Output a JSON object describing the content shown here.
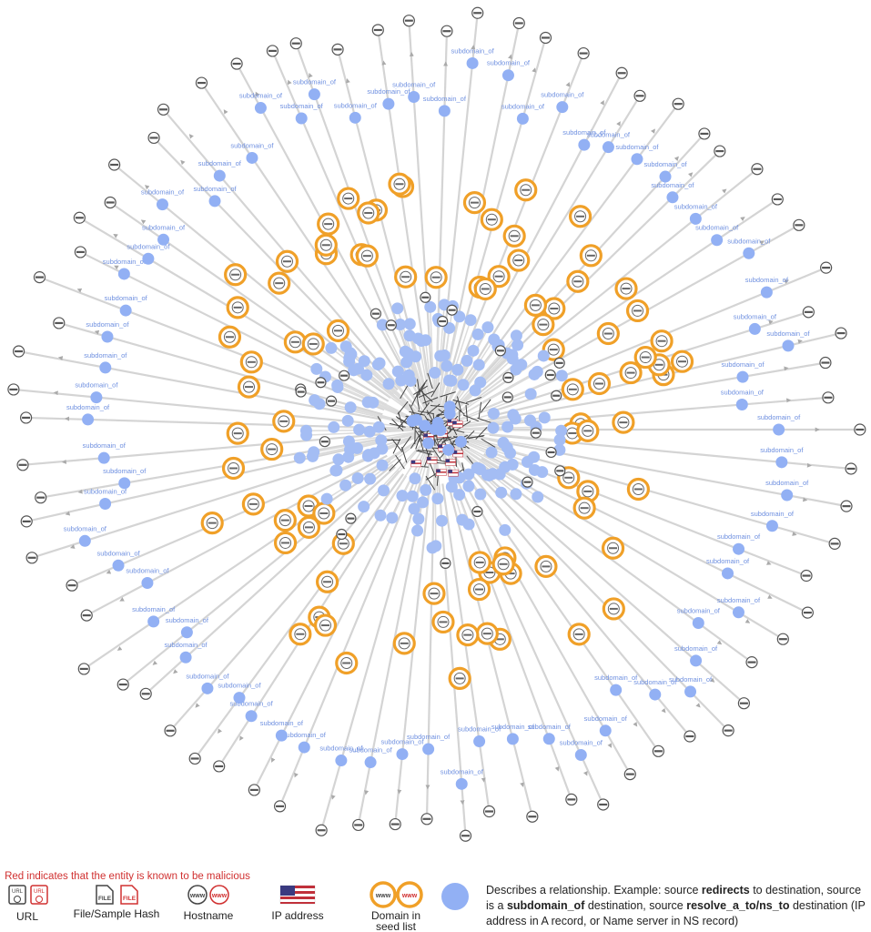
{
  "graph": {
    "edge_labels": [
      "subdomain_of",
      "subdomain_of",
      "subdomain_of",
      "subdomain_of",
      "subdomain_of",
      "subdomain_of",
      "subdomain_of",
      "subdomain_of",
      "subdomain_of",
      "subdomain_of",
      "subdomain_of",
      "subdomain_of",
      "subdomain_of",
      "subdomain_of",
      "subdomain_of",
      "subdomain_of",
      "subdomain_of",
      "subdomain_of",
      "subdomain_of",
      "subdomain_of",
      "subdomain_of",
      "subdomain_of",
      "subdomain_of",
      "subdomain_of",
      "subdomain_of",
      "subdomain_of",
      "subdomain_of",
      "subdomain_of",
      "subdomain_of",
      "subdomain_of",
      "subdomain_of",
      "subdomain_of",
      "subdomain_of",
      "subdomain_of",
      "subdomain_of",
      "subdomain_of",
      "subdomain_of",
      "subdomain_of",
      "subdomain_of",
      "subdomain_of",
      "subdomain_of",
      "subdomain_of",
      "subdomain_of",
      "subdomain_of",
      "subdomain_of",
      "subdomain_of",
      "subdomain_of",
      "subdomain_of",
      "subdomain_of",
      "subdomain_of",
      "subdomain_of",
      "subdomain_of",
      "subdomain_of",
      "subdomain_of",
      "subdomain_of",
      "subdomain_of",
      "subdomain_of",
      "subdomain_of",
      "subdomain_of",
      "subdomain_of",
      "subdomain_of",
      "subdomain_of",
      "subdomain_of",
      "subdomain_of",
      "subdomain_of",
      "subdomain_of",
      "subdomain_of",
      "subdomain_of",
      "subdomain_of",
      "subdomain_of",
      "subdomain_of",
      "subdomain_of"
    ]
  },
  "legend": {
    "note": "Red indicates that the entity is known to be malicious",
    "items": [
      {
        "label": "URL",
        "icon": "URL"
      },
      {
        "label": "File/Sample Hash",
        "icon": "FILE"
      },
      {
        "label": "Hostname",
        "icon": "www"
      },
      {
        "label": "IP address"
      },
      {
        "label": "Domain in seed list",
        "icon": "www"
      }
    ],
    "description": [
      {
        "text": "Describes a relationship. Example: source ",
        "bold": false
      },
      {
        "text": "redirects",
        "bold": true
      },
      {
        "text": " to destination, source is a ",
        "bold": false
      },
      {
        "text": "subdomain_of",
        "bold": true
      },
      {
        "text": " destination, source ",
        "bold": false
      },
      {
        "text": "resolve_a_to/ns_to",
        "bold": true
      },
      {
        "text": " destination (IP address in A record, or Name server in NS record)",
        "bold": false
      }
    ]
  }
}
